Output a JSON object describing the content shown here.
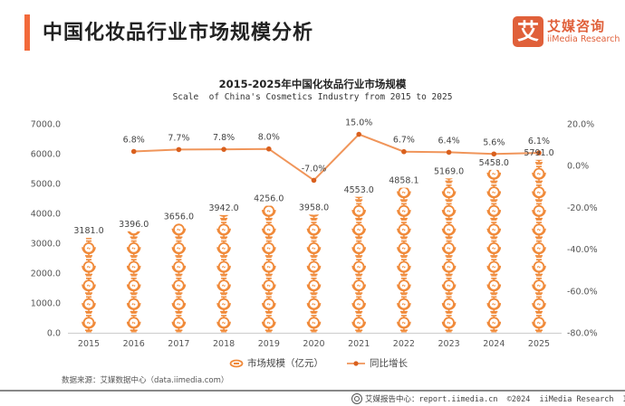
{
  "header": {
    "title": "中国化妆品行业市场规模分析",
    "logo_mark": "艾",
    "logo_cn": "艾媒咨询",
    "logo_en": "iiMedia Research"
  },
  "colors": {
    "accent": "#f26a3b",
    "bar": "#f08a3a",
    "line": "#f0955a",
    "line_marker": "#d9601e",
    "axis": "#cccccc"
  },
  "chart_data": {
    "type": "bar",
    "title": "2015-2025年中国化妆品行业市场规模",
    "subtitle": "Scale  of China's Cosmetics Industry from 2015 to 2025",
    "categories": [
      "2015",
      "2016",
      "2017",
      "2018",
      "2019",
      "2020",
      "2021",
      "2022",
      "2023",
      "2024",
      "2025"
    ],
    "series": [
      {
        "name": "市场规模（亿元）",
        "type": "pictorial-bar",
        "axis": "left",
        "values": [
          3181.0,
          3396.0,
          3656.0,
          3942.0,
          4256.0,
          3958.0,
          4553.0,
          4858.1,
          5169.0,
          5458.0,
          5791.0
        ],
        "labels": [
          "3181.0",
          "3396.0",
          "3656.0",
          "3942.0",
          "4256.0",
          "3958.0",
          "4553.0",
          "4858.1",
          "5169.0",
          "5458.0",
          "5791.0"
        ]
      },
      {
        "name": "同比增长",
        "type": "line",
        "axis": "right",
        "values": [
          null,
          6.8,
          7.7,
          7.8,
          8.0,
          -7.0,
          15.0,
          6.7,
          6.4,
          5.6,
          6.1
        ],
        "labels": [
          null,
          "6.8%",
          "7.7%",
          "7.8%",
          "8.0%",
          "-7.0%",
          "15.0%",
          "6.7%",
          "6.4%",
          "5.6%",
          "6.1%"
        ]
      }
    ],
    "y_left": {
      "min": 0,
      "max": 7000,
      "ticks": [
        "0.0",
        "1000.0",
        "2000.0",
        "3000.0",
        "4000.0",
        "5000.0",
        "6000.0",
        "7000.0"
      ]
    },
    "y_right": {
      "min": -80,
      "max": 20,
      "ticks": [
        "-80.0%",
        "-60.0%",
        "-40.0%",
        "-20.0%",
        "0.0%",
        "20.0%"
      ]
    },
    "grid": false,
    "legend_position": "bottom"
  },
  "legend": {
    "items": [
      "市场规模（亿元）",
      "同比增长"
    ]
  },
  "source": "数据来源：艾媒数据中心（data.iimedia.com）",
  "footer": {
    "text": "艾媒报告中心：report.iimedia.cn  ©2024  iiMedia Research  Inc"
  }
}
